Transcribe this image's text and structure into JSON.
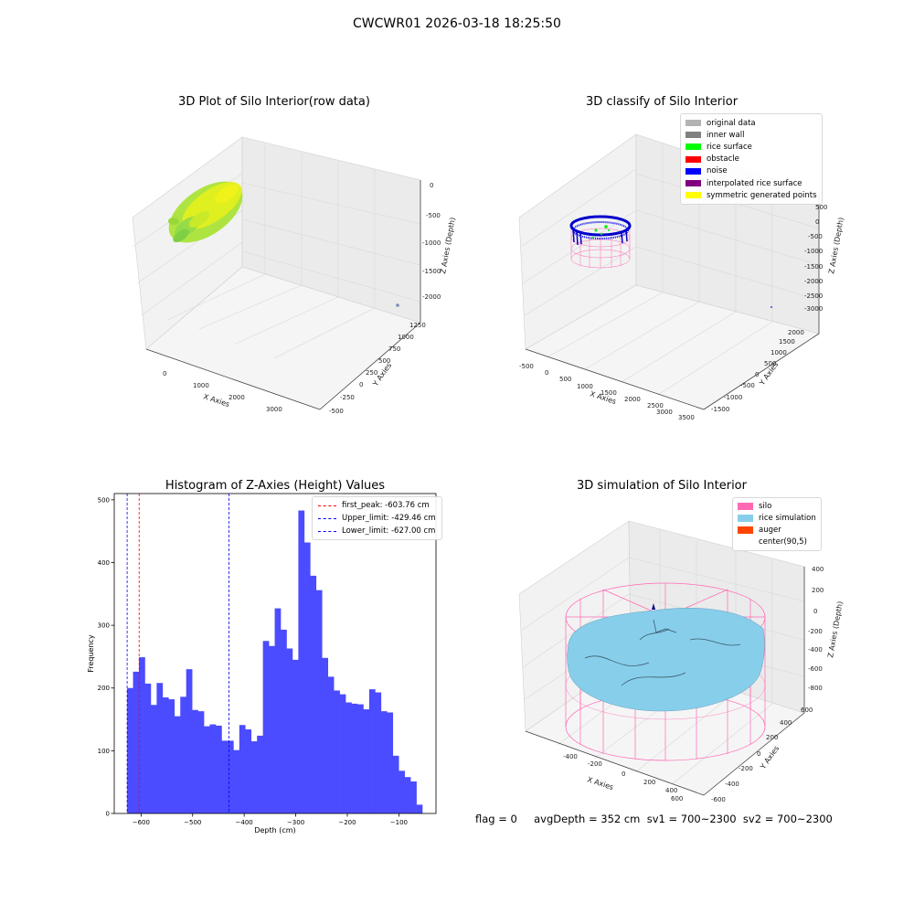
{
  "figure": {
    "suptitle": "CWCWR01 2026-03-18 18:25:50",
    "footer": "flag = 0     avgDepth = 352 cm  sv1 = 700~2300  sv2 = 700~2300"
  },
  "colors": {
    "histogram_bar": "#4b4bff",
    "first_peak": "#ff0000",
    "limit_lines": "#0000ff",
    "pane": "#f2f2f2",
    "grid": "#d9d9d9",
    "silo_wire": "#ff69b4",
    "rice_surface": "#87ceeb"
  },
  "chart_data": [
    {
      "type": "scatter",
      "title": "3D Plot of Silo Interior(row data)",
      "xlabel": "X Axies",
      "ylabel": "Y Axies",
      "zlabel": "Z Axies (Depth)",
      "x_ticks": [
        "0",
        "1000",
        "2000",
        "3000"
      ],
      "y_ticks": [
        "-500",
        "-250",
        "0",
        "250",
        "500",
        "750",
        "1000",
        "1250"
      ],
      "z_ticks": [
        "0",
        "-500",
        "-1000",
        "-1500",
        "-2000"
      ]
    },
    {
      "type": "scatter",
      "title": "3D classify of Silo Interior",
      "xlabel": "X Axies",
      "ylabel": "Y Axies",
      "zlabel": "Z Axies (Depth)",
      "x_ticks": [
        "-500",
        "0",
        "500",
        "1000",
        "1500",
        "2000",
        "2500",
        "3000",
        "3500"
      ],
      "y_ticks": [
        "-1500",
        "-1000",
        "-500",
        "0",
        "500",
        "1000",
        "1500",
        "2000"
      ],
      "z_ticks": [
        "500",
        "0",
        "-500",
        "-1000",
        "-1500",
        "-2000",
        "-2500",
        "-3000"
      ],
      "legend": [
        {
          "label": "original data",
          "color": "#b3b3b3"
        },
        {
          "label": "inner wall",
          "color": "#808080"
        },
        {
          "label": "rice surface",
          "color": "#00ff00"
        },
        {
          "label": "obstacle",
          "color": "#ff0000"
        },
        {
          "label": "noise",
          "color": "#0000ff"
        },
        {
          "label": "interpolated rice surface",
          "color": "#800080"
        },
        {
          "label": "symmetric generated points",
          "color": "#ffff00"
        }
      ]
    },
    {
      "type": "bar",
      "title": "Histogram of Z-Axies (Height) Values",
      "xlabel": "Depth (cm)",
      "ylabel": "Frequency",
      "xlim": [
        -652,
        -28
      ],
      "ylim": [
        0,
        510
      ],
      "x_ticks": [
        -600,
        -500,
        -400,
        -300,
        -200,
        -100
      ],
      "x_tick_labels": [
        "−600",
        "−500",
        "−400",
        "−300",
        "−200",
        "−100"
      ],
      "y_ticks": [
        0,
        100,
        200,
        300,
        400,
        500
      ],
      "y_tick_labels": [
        "0",
        "100",
        "200",
        "300",
        "400",
        "500"
      ],
      "bin_start": -627,
      "bin_width": 11.45,
      "values": [
        200,
        226,
        249,
        207,
        173,
        208,
        185,
        182,
        155,
        186,
        230,
        165,
        163,
        139,
        142,
        140,
        116,
        116,
        101,
        141,
        134,
        115,
        124,
        275,
        267,
        327,
        293,
        263,
        245,
        483,
        432,
        379,
        356,
        248,
        218,
        196,
        190,
        177,
        175,
        174,
        166,
        198,
        193,
        163,
        161,
        92,
        68,
        58,
        51,
        14
      ],
      "lines": [
        {
          "label": "first_peak: -603.76 cm",
          "x": -603.76,
          "color": "#ff0000"
        },
        {
          "label": "Upper_limit: -429.46 cm",
          "x": -429.46,
          "color": "#0000ff"
        },
        {
          "label": "Lower_limit: -627.00 cm",
          "x": -627.0,
          "color": "#0000ff"
        }
      ]
    },
    {
      "type": "area",
      "title": "3D simulation of Silo Interior",
      "xlabel": "X Axies",
      "ylabel": "Y Axies",
      "zlabel": "Z Axies (Depth)",
      "x_ticks": [
        "-400",
        "-200",
        "0",
        "200",
        "400",
        "600"
      ],
      "y_ticks": [
        "-600",
        "-400",
        "-200",
        "0",
        "200",
        "400",
        "600"
      ],
      "z_ticks": [
        "400",
        "200",
        "0",
        "-200",
        "-400",
        "-600",
        "-800"
      ],
      "legend": [
        {
          "label": "silo",
          "color": "#ff69b4"
        },
        {
          "label": "rice simulation",
          "color": "#87ceeb"
        },
        {
          "label": "auger",
          "color": "#ff4500"
        },
        {
          "label": "center(90,5)",
          "color": ""
        }
      ]
    }
  ]
}
